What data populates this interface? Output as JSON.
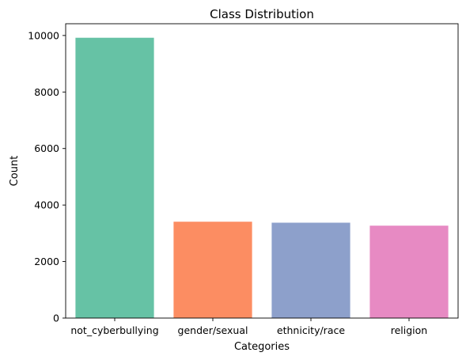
{
  "chart_data": {
    "type": "bar",
    "title": "Class Distribution",
    "xlabel": "Categories",
    "ylabel": "Count",
    "categories": [
      "not_cyberbullying",
      "gender/sexual",
      "ethnicity/race",
      "religion"
    ],
    "values": [
      9920,
      3410,
      3375,
      3270
    ],
    "colors": [
      "#66c2a5",
      "#fc8d62",
      "#8da0cb",
      "#e78ac3"
    ],
    "ylim": [
      0,
      10416
    ],
    "yticks": [
      0,
      2000,
      4000,
      6000,
      8000,
      10000
    ],
    "grid": false,
    "legend": "none"
  }
}
